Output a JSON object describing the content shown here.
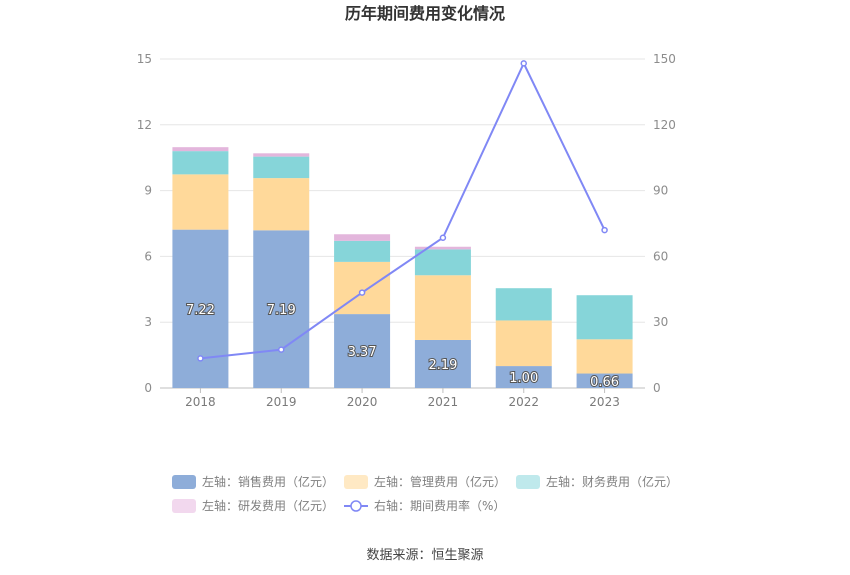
{
  "chart_data": {
    "type": "bar",
    "title": "历年期间费用变化情况",
    "categories": [
      "2018",
      "2019",
      "2020",
      "2021",
      "2022",
      "2023"
    ],
    "ylim_left": [
      0,
      15
    ],
    "yticks_left": [
      "0",
      "3",
      "6",
      "9",
      "12",
      "15"
    ],
    "ylim_right": [
      0,
      150
    ],
    "yticks_right": [
      "0",
      "30",
      "60",
      "90",
      "120",
      "150"
    ],
    "series": [
      {
        "name": "左轴：销售费用（亿元）",
        "kind": "bar",
        "color": "#8eadd9",
        "values": [
          7.22,
          7.19,
          3.37,
          2.19,
          1.0,
          0.66
        ],
        "labels": [
          "7.22",
          "7.19",
          "3.37",
          "2.19",
          "1.00",
          "0.66"
        ]
      },
      {
        "name": "左轴：管理费用（亿元）",
        "kind": "bar",
        "color": "#ffd99a",
        "legend_color": "#ffe9c4",
        "values": [
          2.52,
          2.38,
          2.38,
          2.95,
          2.08,
          1.56
        ]
      },
      {
        "name": "左轴：财务费用（亿元）",
        "kind": "bar",
        "color": "#86d5d9",
        "legend_color": "#bfe9ec",
        "values": [
          1.06,
          0.98,
          0.96,
          1.18,
          1.47,
          2.01
        ]
      },
      {
        "name": "左轴：研发费用（亿元）",
        "kind": "bar",
        "color": "#e3b6dc",
        "legend_color": "#f2d8ee",
        "values": [
          0.18,
          0.15,
          0.3,
          0.12,
          0.0,
          0.0
        ]
      },
      {
        "name": "右轴：期间费用率（%）",
        "kind": "line",
        "color": "#8088f5",
        "values": [
          13.5,
          17.5,
          43.5,
          68.5,
          148.0,
          72.0
        ]
      }
    ],
    "grid": true,
    "legend_position": "bottom"
  },
  "source": "数据来源：恒生聚源"
}
